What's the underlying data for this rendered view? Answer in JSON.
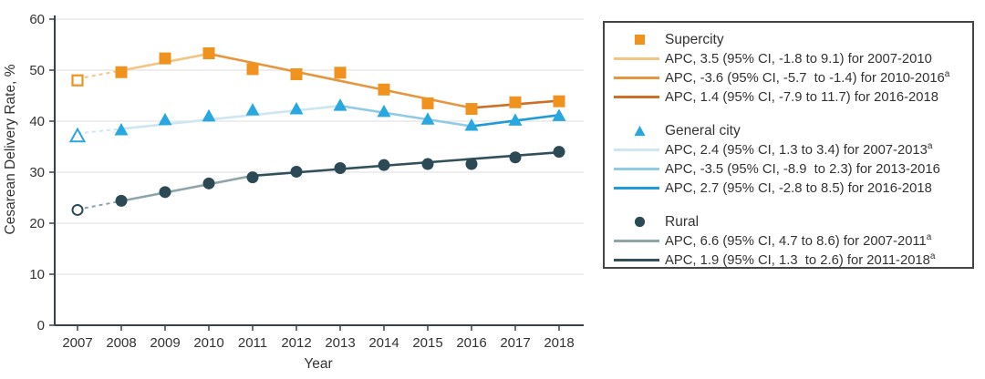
{
  "chart_data": {
    "type": "line",
    "title": "",
    "xlabel": "Year",
    "ylabel": "Cesarean Delivery Rate, %",
    "ylim": [
      0,
      60
    ],
    "yticks": [
      0,
      10,
      20,
      30,
      40,
      50,
      60
    ],
    "grid": "horizontal",
    "years": [
      2007,
      2008,
      2009,
      2010,
      2011,
      2012,
      2013,
      2014,
      2015,
      2016,
      2017,
      2018
    ],
    "open_marker_note": "2007 values shown as open markers joined by dashed line",
    "series": [
      {
        "name": "Supercity",
        "marker": "square",
        "marker_color": "#F0921E",
        "open_marker_years": [
          2007
        ],
        "values": [
          48.0,
          49.6,
          52.3,
          53.3,
          50.2,
          49.2,
          49.5,
          46.2,
          43.5,
          42.4,
          43.7,
          43.9
        ],
        "trend_segments": [
          {
            "from_year": 2007,
            "to_year": 2010,
            "from_value": 48.3,
            "to_value": 53.2,
            "color": "#F2C583",
            "dashed_until_year": 2008
          },
          {
            "from_year": 2010,
            "to_year": 2016,
            "from_value": 53.2,
            "to_value": 42.6,
            "color": "#E5963E"
          },
          {
            "from_year": 2016,
            "to_year": 2018,
            "from_value": 42.6,
            "to_value": 44.0,
            "color": "#CE6F28"
          }
        ]
      },
      {
        "name": "General city",
        "marker": "triangle",
        "marker_color": "#29A7DF",
        "open_marker_years": [
          2007
        ],
        "values": [
          37.1,
          38.3,
          40.3,
          41.0,
          42.2,
          42.4,
          43.1,
          41.9,
          40.4,
          39.2,
          40.2,
          41.1
        ],
        "trend_segments": [
          {
            "from_year": 2007,
            "to_year": 2013,
            "from_value": 37.6,
            "to_value": 43.0,
            "color": "#CDE6F2",
            "dashed_until_year": 2008
          },
          {
            "from_year": 2013,
            "to_year": 2016,
            "from_value": 43.0,
            "to_value": 39.0,
            "color": "#90CBE3"
          },
          {
            "from_year": 2016,
            "to_year": 2018,
            "from_value": 39.0,
            "to_value": 41.2,
            "color": "#1F9CD8"
          }
        ]
      },
      {
        "name": "Rural",
        "marker": "circle",
        "marker_color": "#2C4A56",
        "open_marker_years": [
          2007
        ],
        "values": [
          22.6,
          24.4,
          26.1,
          27.8,
          29.0,
          30.1,
          30.8,
          31.4,
          31.6,
          31.6,
          32.9,
          34.0
        ],
        "trend_segments": [
          {
            "from_year": 2007,
            "to_year": 2011,
            "from_value": 22.7,
            "to_value": 29.3,
            "color": "#8DA4A9",
            "dashed_until_year": 2008
          },
          {
            "from_year": 2011,
            "to_year": 2018,
            "from_value": 29.3,
            "to_value": 33.9,
            "color": "#334F5A"
          }
        ]
      }
    ]
  },
  "legend": {
    "groups": [
      {
        "name": "Supercity",
        "marker": "square",
        "marker_color": "#F0921E",
        "rows": [
          {
            "swatch_color": "#F2C583",
            "text": "APC, 3.5 (95% CI, -1.8 to 9.1) for 2007-2010",
            "sup": ""
          },
          {
            "swatch_color": "#E5963E",
            "text": "APC, -3.6 (95% CI, -5.7  to -1.4) for 2010-2016",
            "sup": "a"
          },
          {
            "swatch_color": "#CE6F28",
            "text": "APC, 1.4 (95% CI, -7.9 to 11.7) for 2016-2018",
            "sup": ""
          }
        ]
      },
      {
        "name": "General city",
        "marker": "triangle",
        "marker_color": "#29A7DF",
        "rows": [
          {
            "swatch_color": "#CDE6F2",
            "text": "APC, 2.4 (95% CI, 1.3 to 3.4) for 2007-2013",
            "sup": "a"
          },
          {
            "swatch_color": "#90CBE3",
            "text": "APC, -3.5 (95% CI, -8.9  to 2.3) for 2013-2016",
            "sup": ""
          },
          {
            "swatch_color": "#1F9CD8",
            "text": "APC, 2.7 (95% CI, -2.8 to 8.5) for 2016-2018",
            "sup": ""
          }
        ]
      },
      {
        "name": "Rural",
        "marker": "circle",
        "marker_color": "#2C4A56",
        "rows": [
          {
            "swatch_color": "#8DA4A9",
            "text": "APC, 6.6 (95% CI, 4.7 to 8.6) for 2007-2011",
            "sup": "a"
          },
          {
            "swatch_color": "#334F5A",
            "text": "APC, 1.9 (95% CI, 1.3  to 2.6) for 2011-2018",
            "sup": "a"
          }
        ]
      }
    ]
  },
  "style": {
    "axis_color": "#37424A",
    "grid_color": "#E3E3E3",
    "text_color": "#333333"
  }
}
